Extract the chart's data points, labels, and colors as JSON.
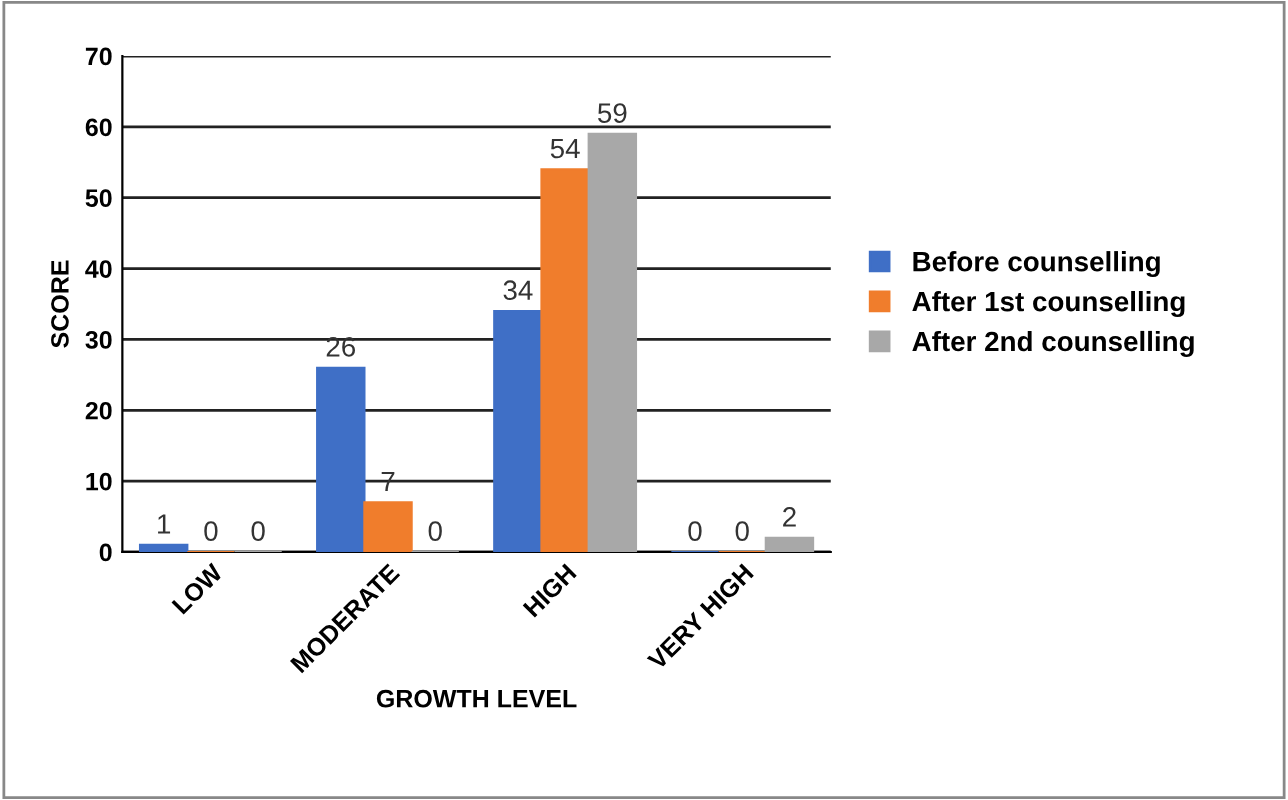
{
  "chart_data": {
    "type": "bar",
    "xlabel": "GROWTH LEVEL",
    "ylabel": "SCORE",
    "categories": [
      "LOW",
      "MODERATE",
      "HIGH",
      "VERY HIGH"
    ],
    "series": [
      {
        "name": "Before counselling",
        "color": "#3f6fc6",
        "values": [
          1,
          26,
          34,
          0
        ]
      },
      {
        "name": "After 1st counselling",
        "color": "#f07d2c",
        "values": [
          0,
          7,
          54,
          0
        ]
      },
      {
        "name": "After 2nd counselling",
        "color": "#a8a8a8",
        "values": [
          0,
          0,
          59,
          2
        ]
      }
    ],
    "ylim": [
      0,
      70
    ],
    "yticks": [
      0,
      10,
      20,
      30,
      40,
      50,
      60,
      70
    ],
    "grid": "y",
    "legend": "right",
    "data_labels": true
  }
}
